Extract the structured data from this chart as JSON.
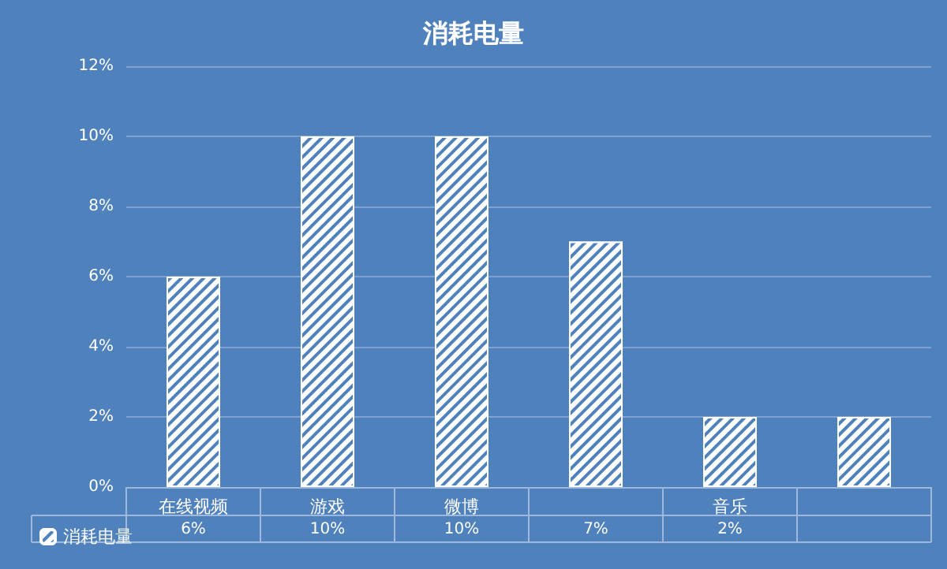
{
  "chart_data": {
    "type": "bar",
    "title": "消耗电量",
    "categories": [
      "在线视频",
      "游戏",
      "微博",
      null,
      "音乐",
      null
    ],
    "series": [
      {
        "name": "消耗电量",
        "color": "#ffffff",
        "values": [
          6,
          10,
          10,
          7,
          2,
          2
        ],
        "value_labels": [
          "6%",
          "10%",
          "10%",
          "7%",
          "2%",
          null
        ]
      }
    ],
    "ylim": [
      0,
      12
    ],
    "yticks": [
      {
        "value": 0,
        "label": "0%"
      },
      {
        "value": 2,
        "label": "2%"
      },
      {
        "value": 4,
        "label": "4%"
      },
      {
        "value": 6,
        "label": "6%"
      },
      {
        "value": 8,
        "label": "8%"
      },
      {
        "value": 10,
        "label": "10%"
      },
      {
        "value": 12,
        "label": "12%"
      }
    ],
    "grid": "y",
    "legend": "bottom left"
  }
}
